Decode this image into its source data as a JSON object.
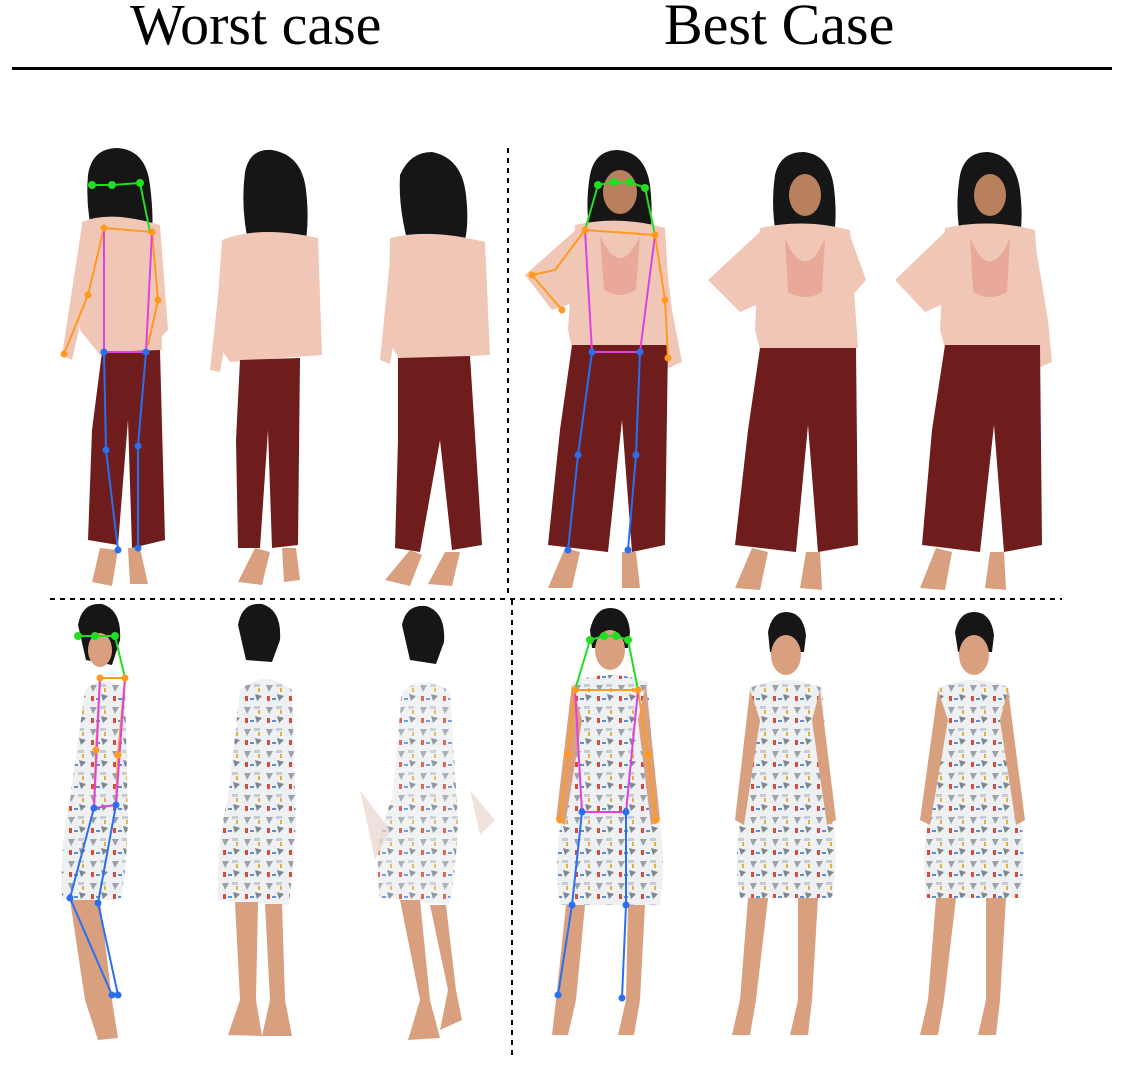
{
  "header": {
    "worst_label": "Worst case",
    "best_label": "Best Case"
  },
  "colors": {
    "blouse": "#f0c7b6",
    "pants": "#6e1c1c",
    "hair": "#161616",
    "skin": "#d9a07f",
    "dress": "#eef0f2",
    "keypoint_head": "#22dd22",
    "keypoint_arm": "#ff9a1f",
    "keypoint_torso": "#e040e0",
    "keypoint_leg": "#2a6ff0"
  }
}
